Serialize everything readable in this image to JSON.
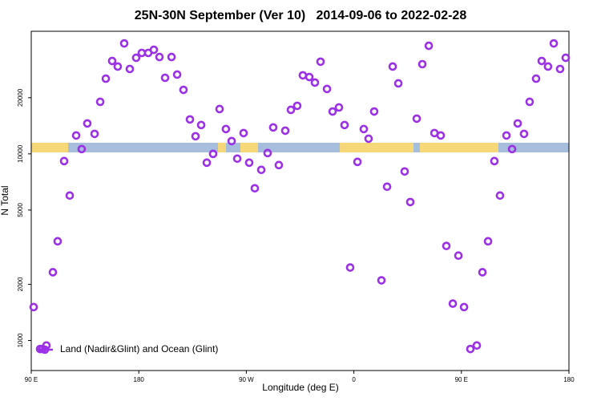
{
  "chart_data": {
    "type": "scatter",
    "title": "25N-30N September (Ver 10)   2014-09-06 to 2022-02-28",
    "x_label": "Longitude (deg E)",
    "y_label": "N Total",
    "ylog": true,
    "legend": "bottom-left",
    "xlim": [
      90,
      540
    ],
    "xticks": [
      {
        "value": 90,
        "label": "90 E"
      },
      {
        "value": 180,
        "label": "180"
      },
      {
        "value": 270,
        "label": "90 W"
      },
      {
        "value": 360,
        "label": "0"
      },
      {
        "value": 450,
        "label": "90 E"
      },
      {
        "value": 540,
        "label": "180"
      }
    ],
    "ylim": [
      690,
      45400
    ],
    "yticks": [
      1000,
      2000,
      5000,
      10000,
      20000
    ],
    "series": [
      {
        "name": "Land (Nadir&Glint) and Ocean (Glint)",
        "color": "#9b30e6",
        "x": [
          92.0,
          97.4,
          99.4,
          102.7,
          108.1,
          112.1,
          117.5,
          122.2,
          127.6,
          132.2,
          136.9,
          143.0,
          147.7,
          152.4,
          157.7,
          162.4,
          167.8,
          172.5,
          177.8,
          182.5,
          187.9,
          192.6,
          197.3,
          202.0,
          207.4,
          212.1,
          217.4,
          222.8,
          227.5,
          232.2,
          236.9,
          242.2,
          247.6,
          252.9,
          257.7,
          262.4,
          267.7,
          272.4,
          277.1,
          282.5,
          287.8,
          292.5,
          297.2,
          302.6,
          307.3,
          312.6,
          317.3,
          322.7,
          327.4,
          332.1,
          337.5,
          342.2,
          347.5,
          352.2,
          356.9,
          363.0,
          368.3,
          372.3,
          377.0,
          383.1,
          387.8,
          392.5,
          397.2,
          402.5,
          407.2,
          412.6,
          417.3,
          422.7,
          427.4,
          432.7,
          437.4,
          442.8,
          447.5,
          452.2,
          457.5,
          462.9,
          467.6,
          472.3,
          477.6,
          482.3,
          487.7,
          492.4,
          497.1,
          502.4,
          507.1,
          512.5,
          517.2,
          522.5,
          527.3,
          532.6,
          537.3
        ],
        "values": [
          1510,
          900,
          900,
          940,
          2320,
          3400,
          9150,
          5980,
          12550,
          10610,
          14560,
          12800,
          19010,
          25300,
          31470,
          29380,
          39080,
          28510,
          32730,
          34750,
          34750,
          36140,
          33050,
          25570,
          33050,
          26610,
          22040,
          15300,
          12430,
          14280,
          8970,
          10000,
          17390,
          13590,
          11710,
          9430,
          12930,
          8970,
          6540,
          8210,
          10100,
          13860,
          8710,
          13320,
          17220,
          18100,
          26360,
          25820,
          24100,
          31190,
          22280,
          16870,
          17740,
          14280,
          2460,
          9060,
          13590,
          12060,
          16870,
          2100,
          6670,
          29380,
          23870,
          8050,
          5520,
          15450,
          30260,
          37960,
          12930,
          12550,
          3210,
          1575,
          2850,
          1510,
          900,
          940,
          2320,
          3400,
          9150,
          5980,
          12550,
          10610,
          14560,
          12800,
          19010,
          25300,
          31470,
          29380,
          39080,
          28510,
          32730
        ]
      }
    ]
  }
}
